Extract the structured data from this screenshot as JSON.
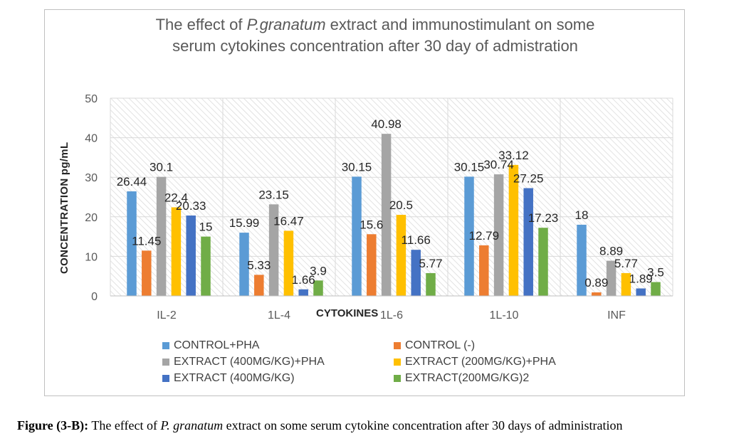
{
  "chart_data": {
    "type": "bar",
    "title": {
      "line1_pre": "The effect of ",
      "line1_italic": "P.granatum",
      "line1_post": " extract and immunostimulant on some",
      "line2": "serum cytokines concentration after 30 day of admistration"
    },
    "xlabel": "CYTOKINES",
    "ylabel": "CONCENTRATION pg/mL",
    "ylim": [
      0,
      50
    ],
    "yticks": [
      "0",
      "10",
      "20",
      "30",
      "40",
      "50"
    ],
    "categories": [
      "IL-2",
      "1L-4",
      "1L-6",
      "1L-10",
      "INF"
    ],
    "series": [
      {
        "name": "CONTROL+PHA",
        "color": "#5b9bd5",
        "values": [
          26.44,
          15.99,
          30.15,
          30.15,
          18
        ],
        "labels": [
          "26.44",
          "15.99",
          "30.15",
          "30.15",
          "18"
        ]
      },
      {
        "name": "CONTROL (-)",
        "color": "#ed7d31",
        "values": [
          11.45,
          5.33,
          15.6,
          12.79,
          0.89
        ],
        "labels": [
          "11.45",
          "5.33",
          "15.6",
          "12.79",
          "0.89"
        ]
      },
      {
        "name": "EXTRACT (400MG/KG)+PHA",
        "color": "#a5a5a5",
        "values": [
          30.1,
          23.15,
          40.98,
          30.74,
          8.89
        ],
        "labels": [
          "30.1",
          "23.15",
          "40.98",
          "30.74",
          "8.89"
        ]
      },
      {
        "name": "EXTRACT (200MG/KG)+PHA",
        "color": "#ffc000",
        "values": [
          22.4,
          16.47,
          20.5,
          33.12,
          5.77
        ],
        "labels": [
          "22.4",
          "16.47",
          "20.5",
          "33.12",
          "5.77"
        ]
      },
      {
        "name": "EXTRACT (400MG/KG)",
        "color": "#4472c4",
        "values": [
          20.33,
          1.66,
          11.66,
          27.25,
          1.89
        ],
        "labels": [
          "20.33",
          "1.66",
          "11.66",
          "27.25",
          "1.89"
        ]
      },
      {
        "name": "EXTRACT(200MG/KG)2",
        "color": "#70ad47",
        "values": [
          15,
          3.9,
          5.77,
          17.23,
          3.5
        ],
        "labels": [
          "15",
          "3.9",
          "5.77",
          "17.23",
          "3.5"
        ]
      }
    ],
    "grid": true,
    "legend_position": "bottom"
  },
  "caption": {
    "label": "Figure (3-B):",
    "text_pre": " The effect of ",
    "text_italic": "P. granatum",
    "text_post": " extract on some serum cytokine concentration after 30 days of administration"
  }
}
